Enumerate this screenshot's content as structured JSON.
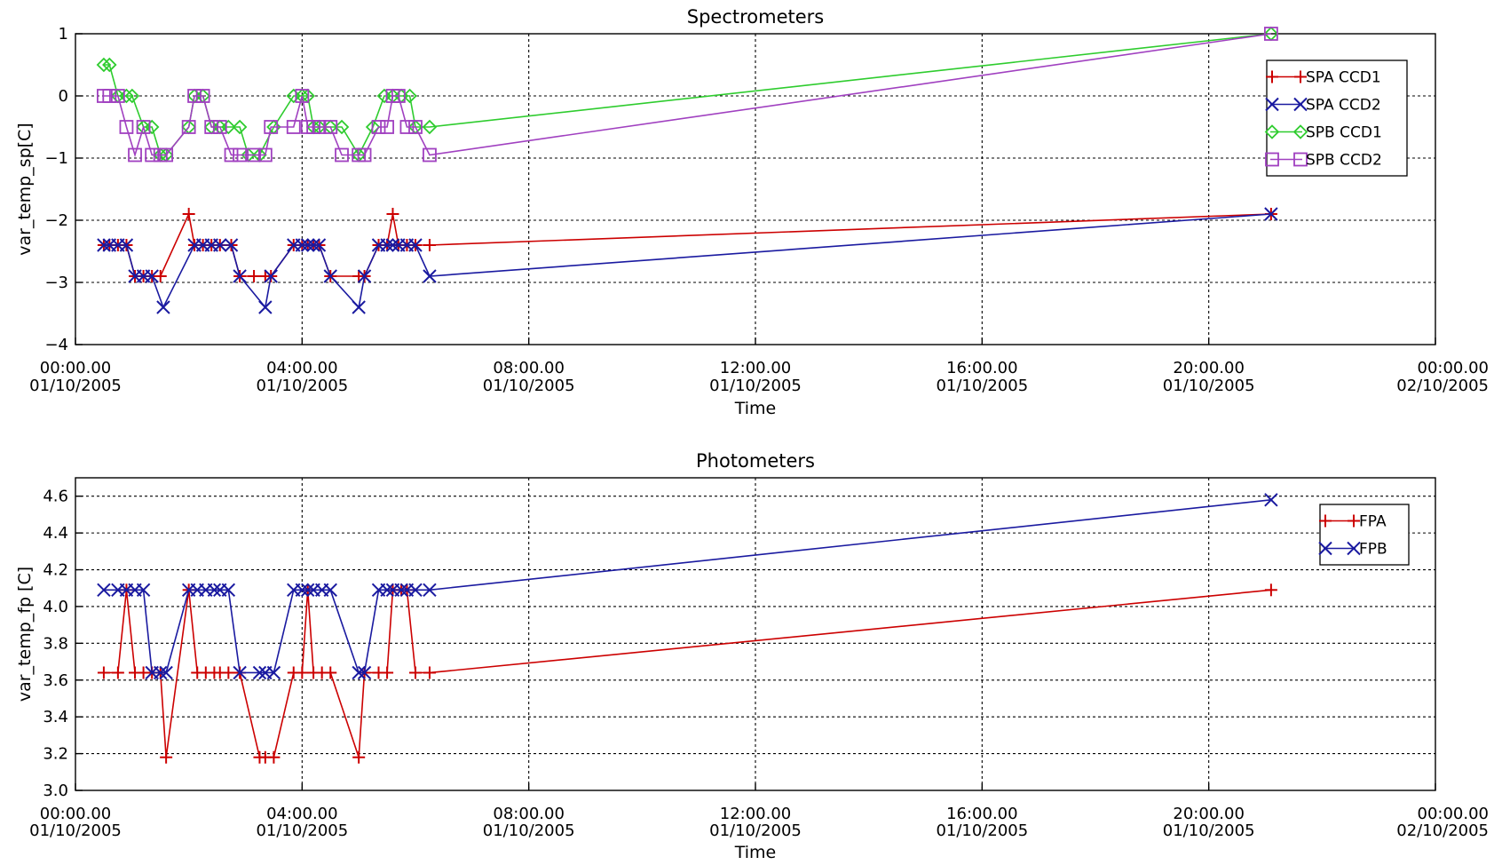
{
  "chart_data": [
    {
      "type": "line",
      "title": "Spectrometers",
      "xlabel": "Time",
      "ylabel": "var_temp_sp[C]",
      "x_unit": "hours since 00:00.00 01/10/2005",
      "xlim": [
        0,
        24
      ],
      "ylim": [
        -4,
        1
      ],
      "grid": true,
      "legend_position": "top-right",
      "x_ticks": [
        {
          "v": 0,
          "time": "00:00.00",
          "date": "01/10/2005"
        },
        {
          "v": 4,
          "time": "04:00.00",
          "date": "01/10/2005"
        },
        {
          "v": 8,
          "time": "08:00.00",
          "date": "01/10/2005"
        },
        {
          "v": 12,
          "time": "12:00.00",
          "date": "01/10/2005"
        },
        {
          "v": 16,
          "time": "16:00.00",
          "date": "01/10/2005"
        },
        {
          "v": 20,
          "time": "20:00.00",
          "date": "01/10/2005"
        },
        {
          "v": 24,
          "time": "00:00.00",
          "date": "02/10/2005"
        }
      ],
      "y_ticks": [
        {
          "v": 1,
          "label": "1"
        },
        {
          "v": 0,
          "label": "0"
        },
        {
          "v": -1,
          "label": "−1"
        },
        {
          "v": -2,
          "label": "−2"
        },
        {
          "v": -3,
          "label": "−3"
        },
        {
          "v": -4,
          "label": "−4"
        }
      ],
      "series": [
        {
          "name": "SPA CCD1",
          "color": "#cc0000",
          "marker": "plus",
          "x": [
            0.5,
            0.6,
            0.75,
            0.9,
            1.05,
            1.2,
            1.35,
            1.5,
            2.0,
            2.1,
            2.25,
            2.4,
            2.55,
            2.75,
            2.9,
            3.15,
            3.35,
            3.45,
            3.85,
            4.0,
            4.1,
            4.2,
            4.3,
            4.5,
            5.0,
            5.1,
            5.35,
            5.5,
            5.6,
            5.7,
            5.85,
            6.0,
            6.25,
            21.1
          ],
          "y": [
            -2.4,
            -2.4,
            -2.4,
            -2.4,
            -2.9,
            -2.9,
            -2.9,
            -2.9,
            -1.9,
            -2.4,
            -2.4,
            -2.4,
            -2.4,
            -2.4,
            -2.9,
            -2.9,
            -2.9,
            -2.9,
            -2.4,
            -2.4,
            -2.4,
            -2.4,
            -2.4,
            -2.9,
            -2.9,
            -2.9,
            -2.4,
            -2.4,
            -1.9,
            -2.4,
            -2.4,
            -2.4,
            -2.4,
            -1.9
          ]
        },
        {
          "name": "SPA CCD2",
          "color": "#1a1aa0",
          "marker": "x",
          "x": [
            0.5,
            0.6,
            0.75,
            0.9,
            1.05,
            1.2,
            1.35,
            1.55,
            2.1,
            2.25,
            2.4,
            2.55,
            2.75,
            2.9,
            3.35,
            3.45,
            3.85,
            4.0,
            4.1,
            4.2,
            4.3,
            4.5,
            5.0,
            5.1,
            5.35,
            5.5,
            5.6,
            5.7,
            5.85,
            6.0,
            6.25,
            21.1
          ],
          "y": [
            -2.4,
            -2.4,
            -2.4,
            -2.4,
            -2.9,
            -2.9,
            -2.9,
            -3.4,
            -2.4,
            -2.4,
            -2.4,
            -2.4,
            -2.4,
            -2.9,
            -3.4,
            -2.9,
            -2.4,
            -2.4,
            -2.4,
            -2.4,
            -2.4,
            -2.9,
            -3.4,
            -2.9,
            -2.4,
            -2.4,
            -2.4,
            -2.4,
            -2.4,
            -2.4,
            -2.9,
            -1.9
          ]
        },
        {
          "name": "SPB CCD1",
          "color": "#2ecc2e",
          "marker": "diamond",
          "x": [
            0.5,
            0.6,
            0.75,
            0.9,
            1.0,
            1.2,
            1.35,
            1.5,
            1.6,
            2.0,
            2.1,
            2.25,
            2.4,
            2.55,
            2.7,
            2.9,
            3.05,
            3.25,
            3.5,
            3.85,
            4.0,
            4.1,
            4.2,
            4.3,
            4.5,
            4.7,
            5.0,
            5.25,
            5.45,
            5.6,
            5.75,
            5.9,
            6.0,
            6.25,
            21.1
          ],
          "y": [
            0.5,
            0.5,
            0.0,
            0.0,
            0.0,
            -0.5,
            -0.5,
            -0.95,
            -0.95,
            -0.5,
            0.0,
            0.0,
            -0.5,
            -0.5,
            -0.5,
            -0.5,
            -0.95,
            -0.95,
            -0.5,
            0.0,
            0.0,
            0.0,
            -0.5,
            -0.5,
            -0.5,
            -0.5,
            -0.95,
            -0.5,
            0.0,
            0.0,
            0.0,
            0.0,
            -0.5,
            -0.5,
            1.0
          ]
        },
        {
          "name": "SPB CCD2",
          "color": "#a040c0",
          "marker": "square",
          "x": [
            0.5,
            0.6,
            0.75,
            0.9,
            1.05,
            1.2,
            1.35,
            1.5,
            1.6,
            2.0,
            2.1,
            2.25,
            2.4,
            2.55,
            2.75,
            2.9,
            3.15,
            3.35,
            3.45,
            3.85,
            4.0,
            4.1,
            4.2,
            4.3,
            4.5,
            4.7,
            5.0,
            5.1,
            5.35,
            5.5,
            5.6,
            5.7,
            5.85,
            6.0,
            6.25,
            21.1
          ],
          "y": [
            0.0,
            0.0,
            0.0,
            -0.5,
            -0.95,
            -0.5,
            -0.95,
            -0.95,
            -0.95,
            -0.5,
            0.0,
            0.0,
            -0.5,
            -0.5,
            -0.95,
            -0.95,
            -0.95,
            -0.95,
            -0.5,
            -0.5,
            0.0,
            -0.5,
            -0.5,
            -0.5,
            -0.5,
            -0.95,
            -0.95,
            -0.95,
            -0.5,
            -0.5,
            0.0,
            0.0,
            -0.5,
            -0.5,
            -0.95,
            1.0
          ]
        }
      ]
    },
    {
      "type": "line",
      "title": "Photometers",
      "xlabel": "Time",
      "ylabel": "var_temp_fp [C]",
      "x_unit": "hours since 00:00.00 01/10/2005",
      "xlim": [
        0,
        24
      ],
      "ylim": [
        3.0,
        4.7
      ],
      "grid": true,
      "legend_position": "top-right",
      "x_ticks": [
        {
          "v": 0,
          "time": "00:00.00",
          "date": "01/10/2005"
        },
        {
          "v": 4,
          "time": "04:00.00",
          "date": "01/10/2005"
        },
        {
          "v": 8,
          "time": "08:00.00",
          "date": "01/10/2005"
        },
        {
          "v": 12,
          "time": "12:00.00",
          "date": "01/10/2005"
        },
        {
          "v": 16,
          "time": "16:00.00",
          "date": "01/10/2005"
        },
        {
          "v": 20,
          "time": "20:00.00",
          "date": "01/10/2005"
        },
        {
          "v": 24,
          "time": "00:00.00",
          "date": "02/10/2005"
        }
      ],
      "y_ticks": [
        {
          "v": 4.6,
          "label": "4.6"
        },
        {
          "v": 4.4,
          "label": "4.4"
        },
        {
          "v": 4.2,
          "label": "4.2"
        },
        {
          "v": 4.0,
          "label": "4.0"
        },
        {
          "v": 3.8,
          "label": "3.8"
        },
        {
          "v": 3.6,
          "label": "3.6"
        },
        {
          "v": 3.4,
          "label": "3.4"
        },
        {
          "v": 3.2,
          "label": "3.2"
        },
        {
          "v": 3.0,
          "label": "3.0"
        }
      ],
      "series": [
        {
          "name": "FPA",
          "color": "#cc0000",
          "marker": "plus",
          "x": [
            0.5,
            0.75,
            0.9,
            1.05,
            1.2,
            1.35,
            1.5,
            1.6,
            2.0,
            2.15,
            2.3,
            2.45,
            2.55,
            2.7,
            2.9,
            3.25,
            3.35,
            3.5,
            3.85,
            4.0,
            4.1,
            4.2,
            4.35,
            4.5,
            5.0,
            5.1,
            5.35,
            5.5,
            5.6,
            5.75,
            5.85,
            6.0,
            6.25,
            21.1
          ],
          "y": [
            3.64,
            3.64,
            4.09,
            3.64,
            3.64,
            3.64,
            3.64,
            3.18,
            4.09,
            3.64,
            3.64,
            3.64,
            3.64,
            3.64,
            3.64,
            3.18,
            3.18,
            3.18,
            3.64,
            3.64,
            4.09,
            3.64,
            3.64,
            3.64,
            3.18,
            3.64,
            3.64,
            3.64,
            4.09,
            4.09,
            4.09,
            3.64,
            3.64,
            4.09
          ]
        },
        {
          "name": "FPB",
          "color": "#1a1aa0",
          "marker": "x",
          "x": [
            0.5,
            0.75,
            0.9,
            1.05,
            1.2,
            1.35,
            1.5,
            1.6,
            2.0,
            2.15,
            2.3,
            2.45,
            2.55,
            2.7,
            2.9,
            3.25,
            3.35,
            3.5,
            3.85,
            4.0,
            4.1,
            4.2,
            4.35,
            4.5,
            5.0,
            5.1,
            5.35,
            5.5,
            5.6,
            5.75,
            5.85,
            6.0,
            6.25,
            21.1
          ],
          "y": [
            4.09,
            4.09,
            4.09,
            4.09,
            4.09,
            3.64,
            3.64,
            3.64,
            4.09,
            4.09,
            4.09,
            4.09,
            4.09,
            4.09,
            3.64,
            3.64,
            3.64,
            3.64,
            4.09,
            4.09,
            4.09,
            4.09,
            4.09,
            4.09,
            3.64,
            3.64,
            4.09,
            4.09,
            4.09,
            4.09,
            4.09,
            4.09,
            4.09,
            4.58
          ]
        }
      ]
    }
  ]
}
